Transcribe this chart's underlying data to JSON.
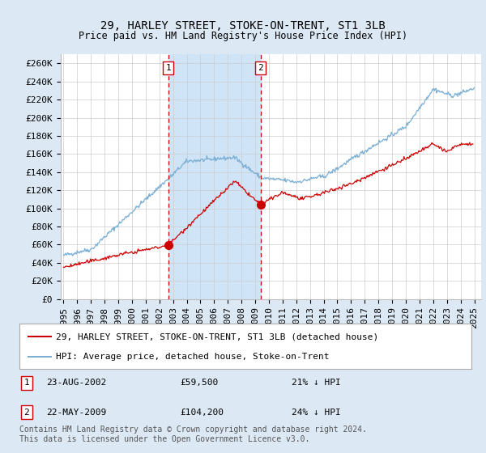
{
  "title": "29, HARLEY STREET, STOKE-ON-TRENT, ST1 3LB",
  "subtitle": "Price paid vs. HM Land Registry's House Price Index (HPI)",
  "ylabel_ticks": [
    "£0",
    "£20K",
    "£40K",
    "£60K",
    "£80K",
    "£100K",
    "£120K",
    "£140K",
    "£160K",
    "£180K",
    "£200K",
    "£220K",
    "£240K",
    "£260K"
  ],
  "ytick_values": [
    0,
    20000,
    40000,
    60000,
    80000,
    100000,
    120000,
    140000,
    160000,
    180000,
    200000,
    220000,
    240000,
    260000
  ],
  "ylim": [
    0,
    270000
  ],
  "xlim_start": 1994.8,
  "xlim_end": 2025.5,
  "xticks": [
    1995,
    1996,
    1997,
    1998,
    1999,
    2000,
    2001,
    2002,
    2003,
    2004,
    2005,
    2006,
    2007,
    2008,
    2009,
    2010,
    2011,
    2012,
    2013,
    2014,
    2015,
    2016,
    2017,
    2018,
    2019,
    2020,
    2021,
    2022,
    2023,
    2024,
    2025
  ],
  "hpi_color": "#7bafd4",
  "price_color": "#cc0000",
  "transaction1_x": 2002.646,
  "transaction1_y": 59500,
  "transaction1_label": "1",
  "transaction1_date": "23-AUG-2002",
  "transaction1_price": "£59,500",
  "transaction1_pct": "21% ↓ HPI",
  "transaction2_x": 2009.388,
  "transaction2_y": 104200,
  "transaction2_label": "2",
  "transaction2_date": "22-MAY-2009",
  "transaction2_price": "£104,200",
  "transaction2_pct": "24% ↓ HPI",
  "legend_line1": "29, HARLEY STREET, STOKE-ON-TRENT, ST1 3LB (detached house)",
  "legend_line2": "HPI: Average price, detached house, Stoke-on-Trent",
  "footnote": "Contains HM Land Registry data © Crown copyright and database right 2024.\nThis data is licensed under the Open Government Licence v3.0.",
  "bg_color": "#dce9f5",
  "plot_bg": "#ffffff",
  "shade_color": "#d0e4f7",
  "vline_color": "#cc0000",
  "marker_color": "#cc0000",
  "title_fontsize": 10,
  "tick_fontsize": 8,
  "legend_fontsize": 8,
  "footnote_fontsize": 7
}
